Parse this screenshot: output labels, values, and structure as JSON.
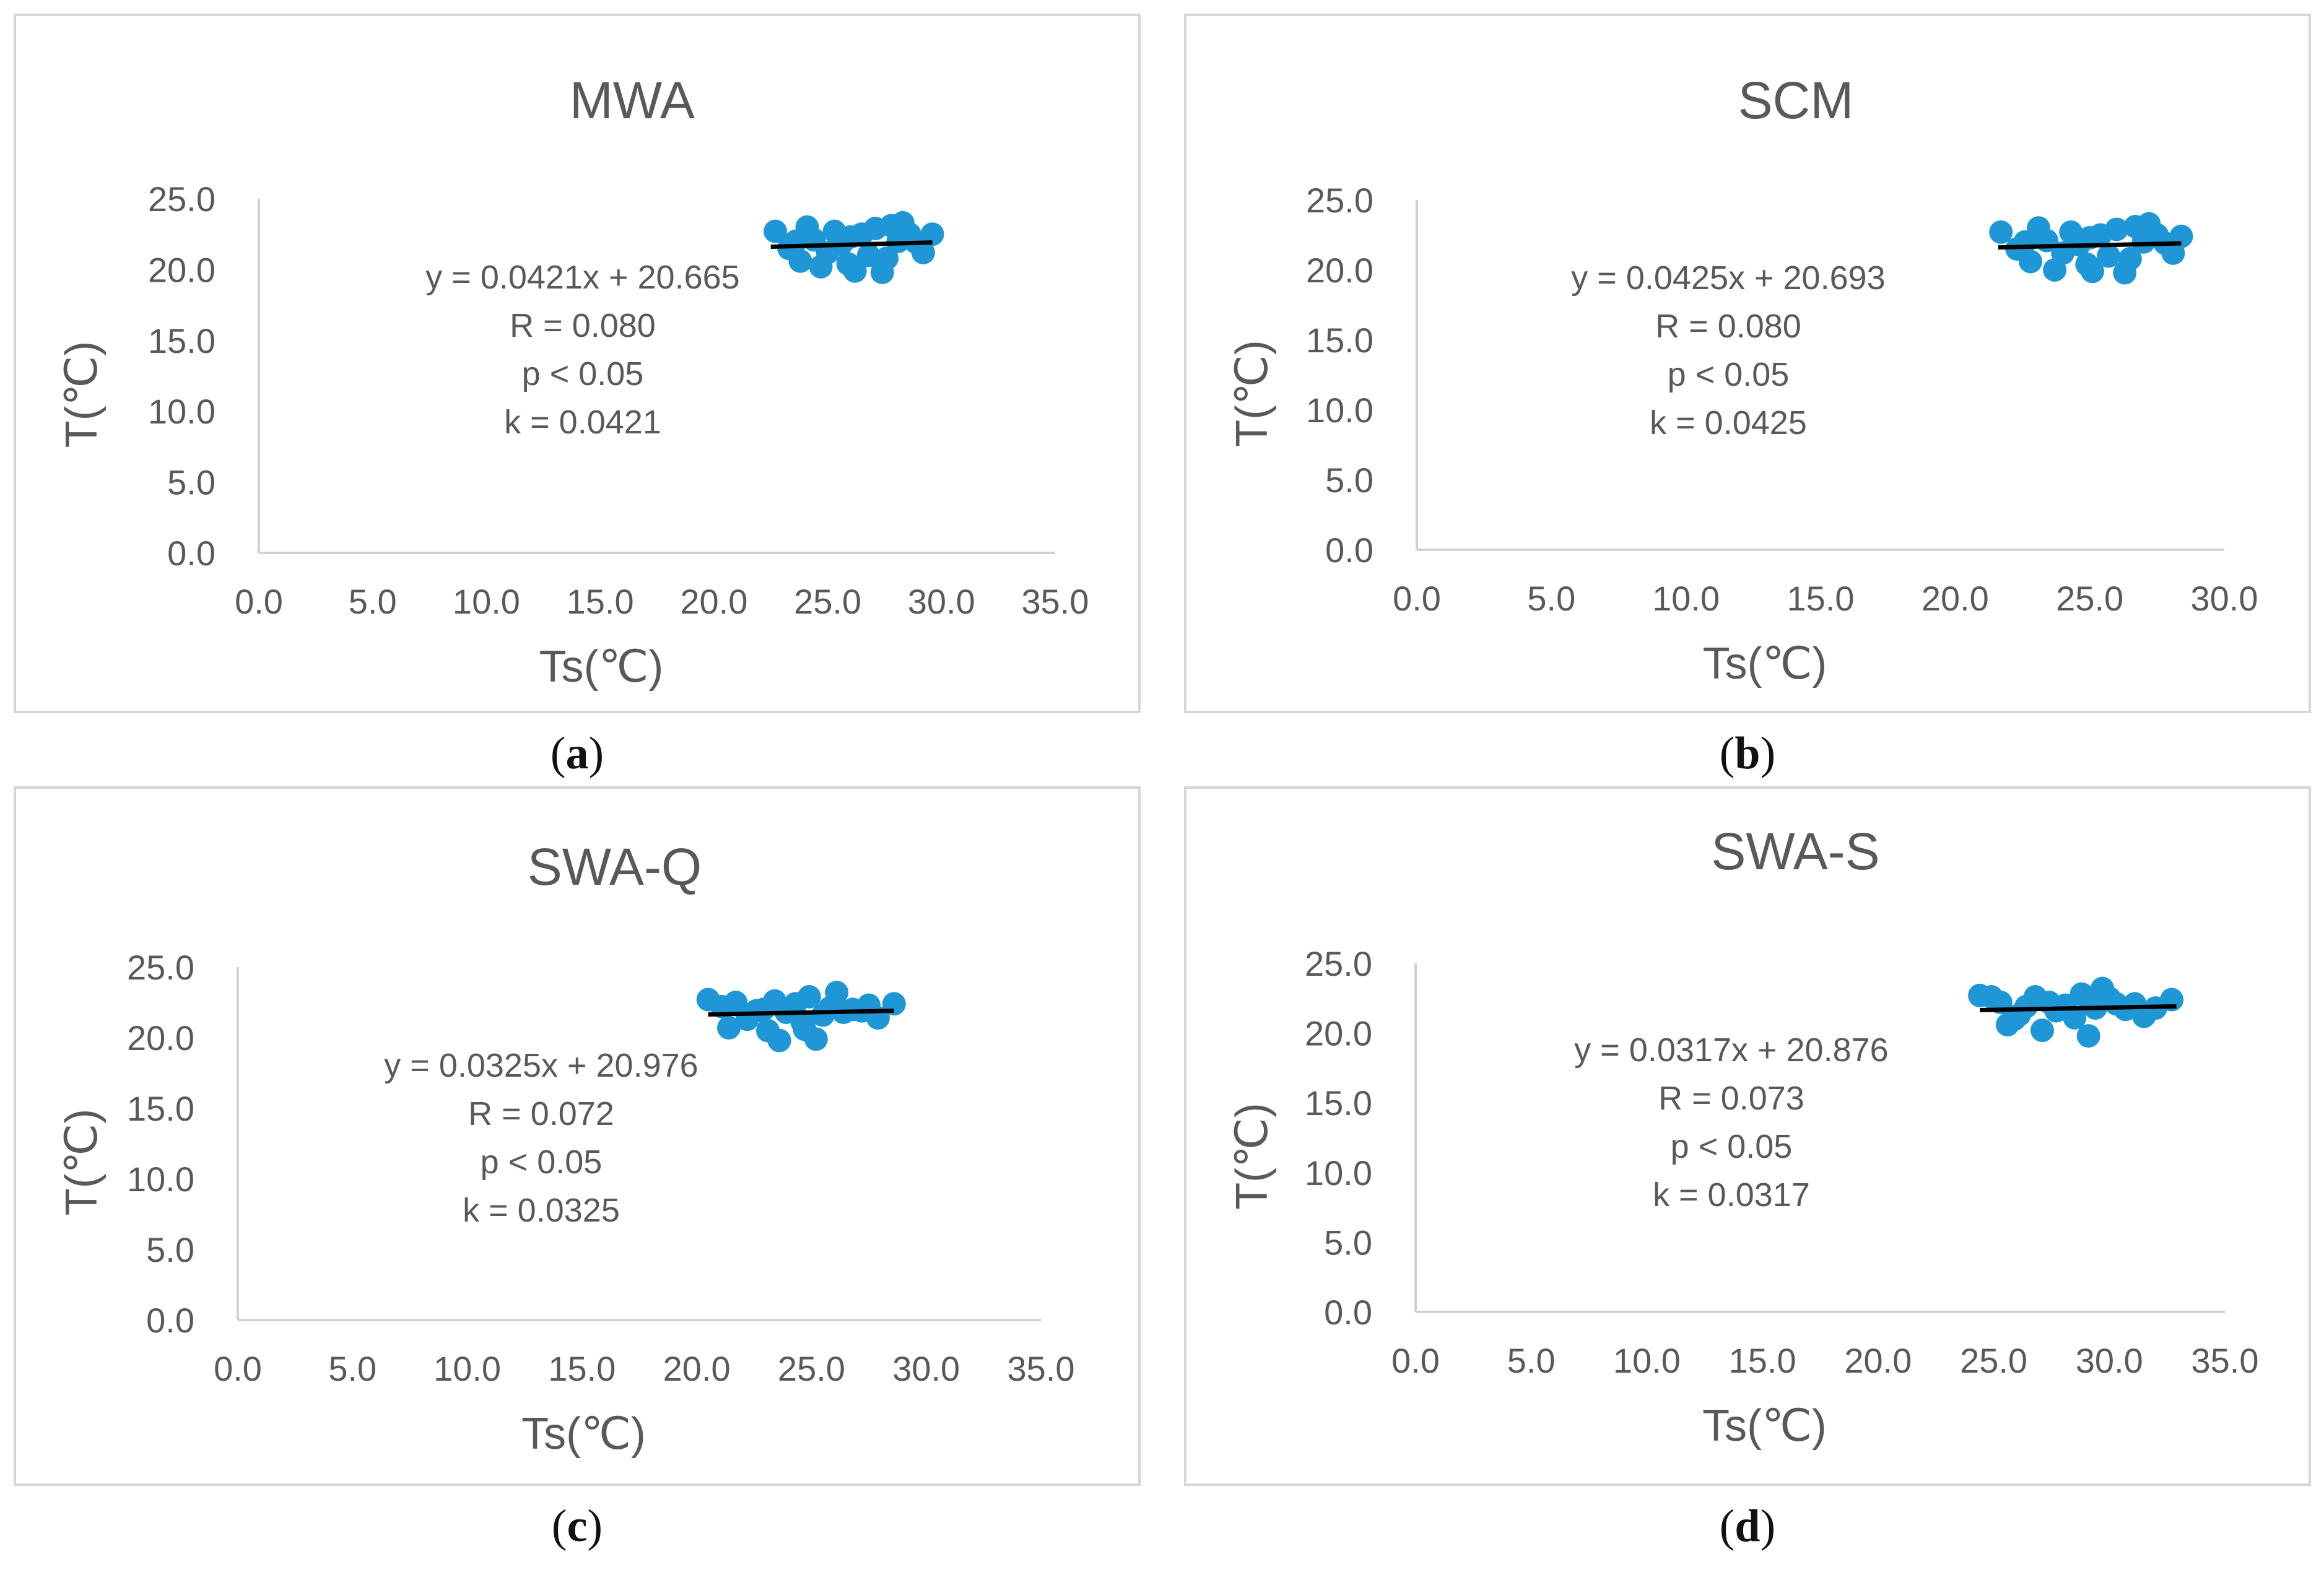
{
  "chart_data": [
    {
      "type": "scatter",
      "panel_label": "a",
      "title": "MWA",
      "xlabel": "Ts(℃)",
      "ylabel": "T(℃)",
      "xlim": [
        0,
        35
      ],
      "ylim": [
        0,
        25
      ],
      "x_ticks": [
        "0.0",
        "5.0",
        "10.0",
        "15.0",
        "20.0",
        "25.0",
        "30.0",
        "35.0"
      ],
      "y_ticks": [
        "0.0",
        "5.0",
        "10.0",
        "15.0",
        "20.0",
        "25.0"
      ],
      "points": [
        [
          22.7,
          22.7
        ],
        [
          23.3,
          21.5
        ],
        [
          23.8,
          20.6
        ],
        [
          24.1,
          23.0
        ],
        [
          24.4,
          22.1
        ],
        [
          24.7,
          20.2
        ],
        [
          25.0,
          21.2
        ],
        [
          25.3,
          22.7
        ],
        [
          25.6,
          21.8
        ],
        [
          25.9,
          20.4
        ],
        [
          26.2,
          19.9
        ],
        [
          26.5,
          22.5
        ],
        [
          26.8,
          21.0
        ],
        [
          27.1,
          22.9
        ],
        [
          27.4,
          19.8
        ],
        [
          27.6,
          20.8
        ],
        [
          27.8,
          23.1
        ],
        [
          28.1,
          22.0
        ],
        [
          28.3,
          23.3
        ],
        [
          28.6,
          22.5
        ],
        [
          28.9,
          21.9
        ],
        [
          29.2,
          21.2
        ],
        [
          29.6,
          22.5
        ],
        [
          23.6,
          22.0
        ],
        [
          26.0,
          22.3
        ]
      ],
      "trend": {
        "slope": 0.0421,
        "intercept": 20.665,
        "x_range": [
          22.5,
          29.6
        ]
      },
      "annotations": [
        "y = 0.0421x + 20.665",
        "R = 0.080",
        "p < 0.05",
        "k = 0.0421"
      ]
    },
    {
      "type": "scatter",
      "panel_label": "b",
      "title": "SCM",
      "xlabel": "Ts(℃)",
      "ylabel": "T(℃)",
      "xlim": [
        0,
        30
      ],
      "ylim": [
        0,
        25
      ],
      "x_ticks": [
        "0.0",
        "5.0",
        "10.0",
        "15.0",
        "20.0",
        "25.0",
        "30.0"
      ],
      "y_ticks": [
        "0.0",
        "5.0",
        "10.0",
        "15.0",
        "20.0",
        "25.0"
      ],
      "points": [
        [
          21.7,
          22.7
        ],
        [
          22.3,
          21.5
        ],
        [
          22.8,
          20.6
        ],
        [
          23.1,
          23.0
        ],
        [
          23.4,
          22.1
        ],
        [
          23.7,
          20.0
        ],
        [
          24.0,
          21.2
        ],
        [
          24.3,
          22.7
        ],
        [
          24.6,
          21.8
        ],
        [
          24.9,
          20.4
        ],
        [
          25.1,
          19.9
        ],
        [
          25.4,
          22.5
        ],
        [
          25.7,
          21.0
        ],
        [
          26.0,
          22.9
        ],
        [
          26.3,
          19.8
        ],
        [
          26.5,
          20.8
        ],
        [
          26.7,
          23.1
        ],
        [
          27.0,
          22.0
        ],
        [
          27.2,
          23.3
        ],
        [
          27.5,
          22.5
        ],
        [
          27.8,
          21.9
        ],
        [
          28.1,
          21.2
        ],
        [
          28.4,
          22.4
        ],
        [
          22.6,
          22.0
        ],
        [
          25.0,
          22.3
        ]
      ],
      "trend": {
        "slope": 0.0425,
        "intercept": 20.693,
        "x_range": [
          21.6,
          28.4
        ]
      },
      "annotations": [
        "y = 0.0425x + 20.693",
        "R = 0.080",
        "p < 0.05",
        "k = 0.0425"
      ]
    },
    {
      "type": "scatter",
      "panel_label": "c",
      "title": "SWA-Q",
      "xlabel": "Ts(℃)",
      "ylabel": "T(℃)",
      "xlim": [
        0,
        35
      ],
      "ylim": [
        0,
        25
      ],
      "x_ticks": [
        "0.0",
        "5.0",
        "10.0",
        "15.0",
        "20.0",
        "25.0",
        "30.0",
        "35.0"
      ],
      "y_ticks": [
        "0.0",
        "5.0",
        "10.0",
        "15.0",
        "20.0",
        "25.0"
      ],
      "points": [
        [
          20.5,
          22.7
        ],
        [
          21.1,
          22.2
        ],
        [
          21.4,
          20.7
        ],
        [
          21.7,
          22.5
        ],
        [
          22.2,
          21.3
        ],
        [
          22.6,
          21.9
        ],
        [
          23.1,
          20.5
        ],
        [
          23.4,
          22.6
        ],
        [
          23.6,
          19.8
        ],
        [
          23.9,
          21.8
        ],
        [
          24.3,
          22.4
        ],
        [
          24.6,
          21.1
        ],
        [
          24.9,
          22.9
        ],
        [
          25.2,
          19.9
        ],
        [
          25.5,
          21.6
        ],
        [
          25.8,
          22.1
        ],
        [
          26.1,
          23.2
        ],
        [
          26.4,
          21.8
        ],
        [
          26.8,
          22.0
        ],
        [
          27.2,
          21.9
        ],
        [
          27.5,
          22.3
        ],
        [
          27.9,
          21.4
        ],
        [
          28.6,
          22.4
        ],
        [
          22.9,
          22.0
        ],
        [
          24.7,
          20.6
        ]
      ],
      "trend": {
        "slope": 0.0325,
        "intercept": 20.976,
        "x_range": [
          20.5,
          28.6
        ]
      },
      "annotations": [
        "y = 0.0325x + 20.976",
        "R = 0.072",
        "p < 0.05",
        "k = 0.0325"
      ]
    },
    {
      "type": "scatter",
      "panel_label": "d",
      "title": "SWA-S",
      "xlabel": "Ts(℃)",
      "ylabel": "T(℃)",
      "xlim": [
        0,
        35
      ],
      "ylim": [
        0,
        25
      ],
      "x_ticks": [
        "0.0",
        "5.0",
        "10.0",
        "15.0",
        "20.0",
        "25.0",
        "30.0",
        "35.0"
      ],
      "y_ticks": [
        "0.0",
        "5.0",
        "10.0",
        "15.0",
        "20.0",
        "25.0"
      ],
      "points": [
        [
          24.4,
          22.7
        ],
        [
          24.9,
          22.6
        ],
        [
          25.3,
          22.2
        ],
        [
          25.6,
          20.6
        ],
        [
          25.9,
          21.0
        ],
        [
          26.4,
          21.9
        ],
        [
          26.8,
          22.6
        ],
        [
          27.1,
          20.2
        ],
        [
          27.4,
          22.2
        ],
        [
          27.7,
          21.6
        ],
        [
          28.1,
          22.0
        ],
        [
          28.5,
          21.1
        ],
        [
          28.8,
          22.8
        ],
        [
          29.1,
          19.8
        ],
        [
          29.4,
          21.8
        ],
        [
          29.7,
          23.2
        ],
        [
          30.0,
          22.5
        ],
        [
          30.3,
          22.1
        ],
        [
          30.7,
          21.7
        ],
        [
          31.1,
          22.1
        ],
        [
          31.5,
          21.2
        ],
        [
          32.0,
          21.8
        ],
        [
          32.7,
          22.4
        ],
        [
          26.1,
          21.3
        ],
        [
          29.0,
          22.6
        ]
      ],
      "trend": {
        "slope": 0.0317,
        "intercept": 20.876,
        "x_range": [
          24.4,
          32.9
        ]
      },
      "annotations": [
        "y = 0.0317x + 20.876",
        "R = 0.073",
        "p < 0.05",
        "k = 0.0317"
      ]
    }
  ]
}
